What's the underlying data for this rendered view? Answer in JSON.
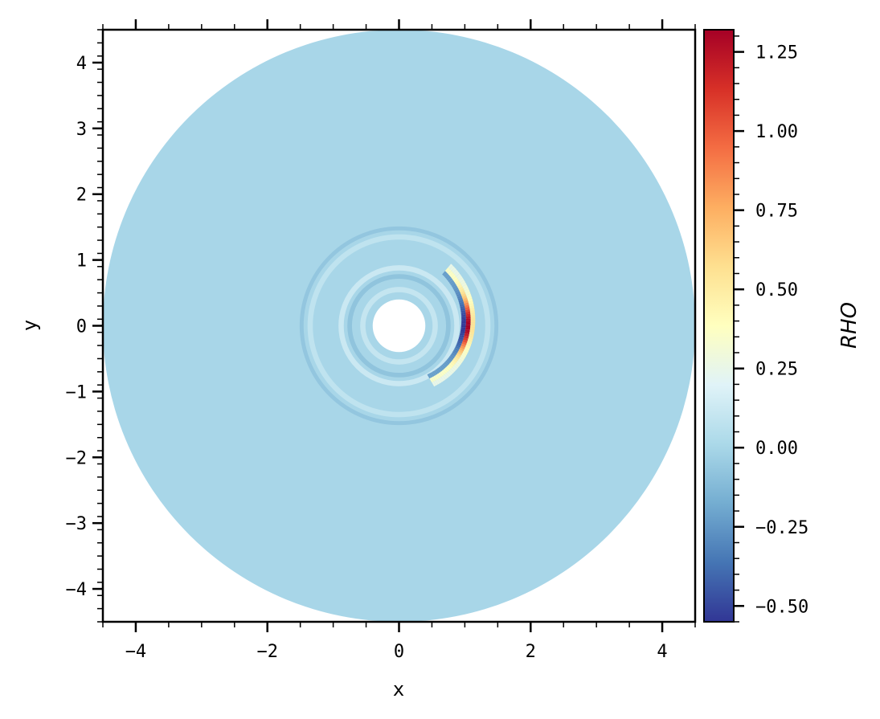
{
  "chart_data": {
    "type": "heatmap",
    "subtype": "polar disk density map",
    "xlabel": "x",
    "ylabel": "y",
    "xlim": [
      -4.5,
      4.5
    ],
    "ylim": [
      -4.5,
      4.5
    ],
    "x_ticks": [
      -4,
      -2,
      0,
      2,
      4
    ],
    "y_ticks": [
      -4,
      -3,
      -2,
      -1,
      0,
      1,
      2,
      3,
      4
    ],
    "x_tick_labels": [
      "−4",
      "−2",
      "0",
      "2",
      "4"
    ],
    "y_tick_labels": [
      "−4",
      "−3",
      "−2",
      "−1",
      "0",
      "1",
      "2",
      "3",
      "4"
    ],
    "grid": false,
    "colormap": "RdYlBu_r",
    "colorbar": {
      "label": "RHO",
      "vmin": -0.55,
      "vmax": 1.32,
      "ticks": [
        -0.5,
        -0.25,
        0.0,
        0.25,
        0.5,
        0.75,
        1.0,
        1.25
      ],
      "tick_labels": [
        "−0.50",
        "−0.25",
        "0.00",
        "0.25",
        "0.50",
        "0.75",
        "1.00",
        "1.25"
      ]
    },
    "disk": {
      "inner_radius": 0.4,
      "outer_radius": 4.5,
      "background_value": 0.0
    },
    "features": [
      {
        "kind": "ring",
        "radius": 0.55,
        "width": 0.08,
        "value": 0.1
      },
      {
        "kind": "ring",
        "radius": 0.75,
        "width": 0.07,
        "value": -0.08
      },
      {
        "kind": "ring",
        "radius": 0.88,
        "width": 0.08,
        "value": 0.12
      },
      {
        "kind": "ring",
        "radius": 1.35,
        "width": 0.08,
        "value": 0.08
      },
      {
        "kind": "ring",
        "radius": 1.48,
        "width": 0.06,
        "value": -0.07
      },
      {
        "kind": "spiral_arc",
        "radius": 1.05,
        "angle_range_deg": [
          -60,
          50
        ],
        "peak_value": 1.32,
        "trough_value": -0.55,
        "peak_at": [
          1.0,
          0.05
        ]
      }
    ]
  }
}
